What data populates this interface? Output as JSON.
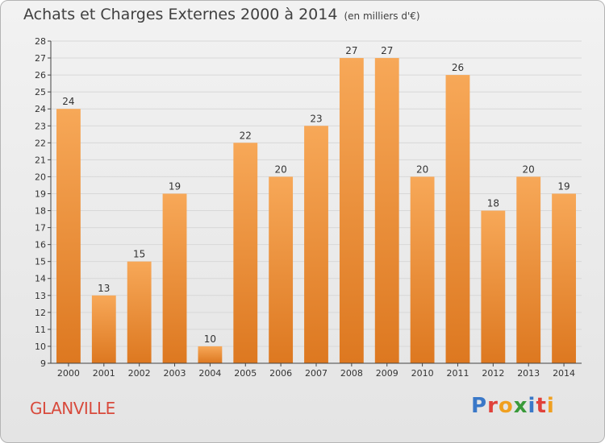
{
  "title": "Achats et Charges Externes 2000 à 2014",
  "unit_note": "(en milliers d'€)",
  "commune": "GLANVILLE",
  "logo_letters": [
    {
      "ch": "P",
      "color": "#3a78c8"
    },
    {
      "ch": "r",
      "color": "#e0413a"
    },
    {
      "ch": "o",
      "color": "#f0a020"
    },
    {
      "ch": "x",
      "color": "#3a9a3a"
    },
    {
      "ch": "i",
      "color": "#3a78c8"
    },
    {
      "ch": "t",
      "color": "#e0413a"
    },
    {
      "ch": "i",
      "color": "#f0a020"
    }
  ],
  "colors": {
    "bar_light": "#f7a858",
    "bar_dark": "#dd7820",
    "axis": "#444444",
    "grid": "#d8d8d8"
  },
  "chart_data": {
    "type": "bar",
    "categories": [
      "2000",
      "2001",
      "2002",
      "2003",
      "2004",
      "2005",
      "2006",
      "2007",
      "2008",
      "2009",
      "2010",
      "2011",
      "2012",
      "2013",
      "2014"
    ],
    "values": [
      24,
      13,
      15,
      19,
      10,
      22,
      20,
      23,
      27,
      27,
      20,
      26,
      18,
      20,
      19
    ],
    "ylim": [
      9,
      28
    ],
    "yticks": [
      9,
      10,
      11,
      12,
      13,
      14,
      15,
      16,
      17,
      18,
      19,
      20,
      21,
      22,
      23,
      24,
      25,
      26,
      27,
      28
    ],
    "grid": true,
    "xlabel": "",
    "ylabel": ""
  }
}
